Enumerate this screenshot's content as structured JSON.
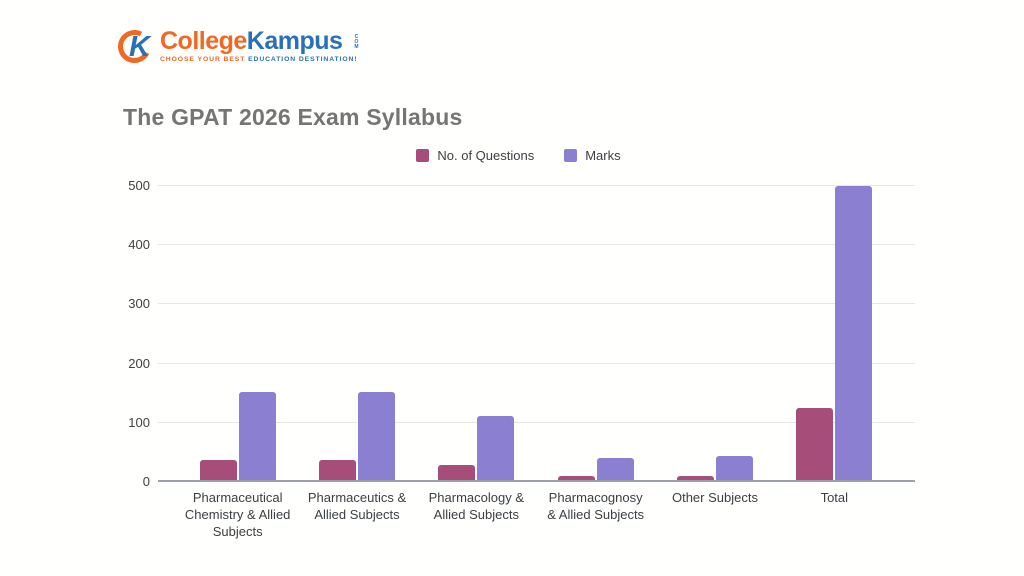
{
  "logo": {
    "brand_part1": "College",
    "brand_part2": "Kampus",
    "brand_suffix": "COM",
    "tagline_part1": "CHOOSE YOUR BEST ",
    "tagline_part2": "EDUCATION DESTINATION!",
    "colors": {
      "orange": "#f26822",
      "blue": "#2a70b8"
    }
  },
  "chart_data": {
    "type": "bar",
    "title": "The GPAT 2026 Exam Syllabus",
    "categories": [
      "Pharmaceutical Chemistry & Allied Subjects",
      "Pharmaceutics & Allied Subjects",
      "Pharmacology & Allied Subjects",
      "Pharmacognosy & Allied Subjects",
      "Other Subjects",
      "Total"
    ],
    "category_lines": [
      [
        "Pharmaceutical",
        "Chemistry & Allied",
        "Subjects"
      ],
      [
        "Pharmaceutics &",
        "Allied Subjects"
      ],
      [
        "Pharmacology &",
        "Allied Subjects"
      ],
      [
        "Pharmacognosy",
        "& Allied Subjects"
      ],
      [
        "Other Subjects"
      ],
      [
        "Total"
      ]
    ],
    "series": [
      {
        "name": "No. of Questions",
        "color": "#a64d79",
        "values": [
          38,
          38,
          28,
          10,
          11,
          125
        ]
      },
      {
        "name": "Marks",
        "color": "#8b7fd2",
        "values": [
          152,
          152,
          112,
          40,
          44,
          500
        ]
      }
    ],
    "xlabel": "",
    "ylabel": "",
    "ylim": [
      0,
      500
    ],
    "yticks": [
      0,
      100,
      200,
      300,
      400,
      500
    ],
    "grid": "horizontal",
    "legend_position": "top"
  }
}
